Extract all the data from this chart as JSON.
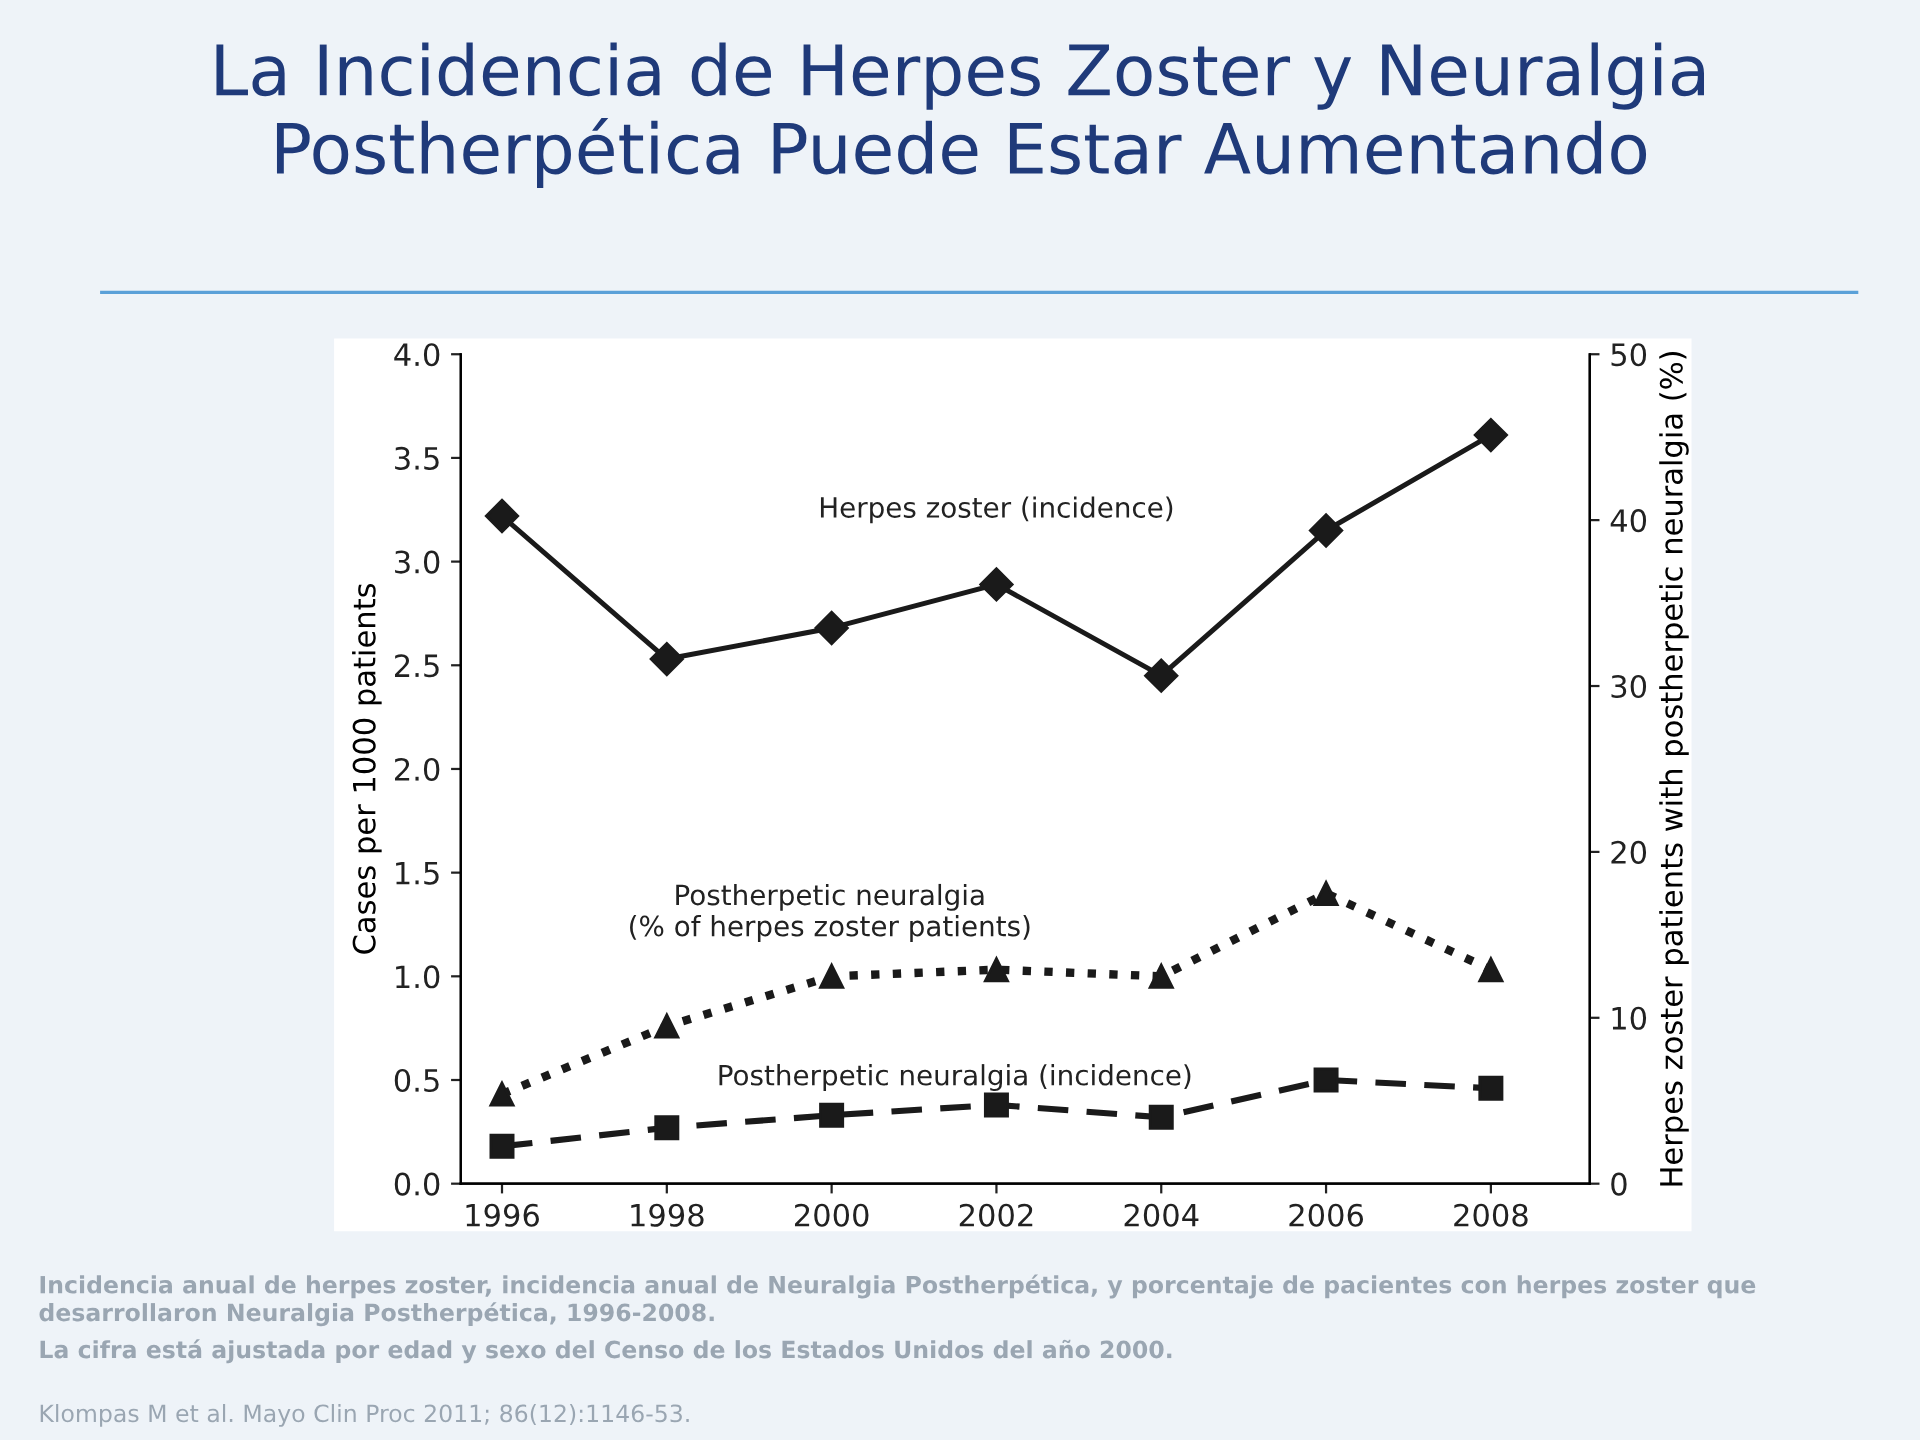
{
  "chart_data": {
    "type": "line",
    "title": "La Incidencia de Herpes Zoster y Neuralgia\nPostherpética Puede Estar Aumentando",
    "ylabel": "Cases per 1000 patients",
    "y2label": "Herpes zoster patients with postherpetic neuralgia (%)",
    "x": [
      1996,
      1998,
      2000,
      2002,
      2004,
      2006,
      2008
    ],
    "xlim": [
      1995.5,
      2009.2
    ],
    "xticks": [
      1996,
      1998,
      2000,
      2002,
      2004,
      2006,
      2008
    ],
    "ylim": [
      0,
      4
    ],
    "yticks": [
      {
        "value": 0,
        "label": "0.0"
      },
      {
        "value": 0.5,
        "label": "0.5"
      },
      {
        "value": 1,
        "label": "1.0"
      },
      {
        "value": 1.5,
        "label": "1.5"
      },
      {
        "value": 2,
        "label": "2.0"
      },
      {
        "value": 2.5,
        "label": "2.5"
      },
      {
        "value": 3,
        "label": "3.0"
      },
      {
        "value": 3.5,
        "label": "3.5"
      },
      {
        "value": 4,
        "label": "4.0"
      }
    ],
    "y2lim": [
      0,
      50
    ],
    "y2ticks": [
      0,
      10,
      20,
      30,
      40,
      50
    ],
    "grid": false,
    "legend": false,
    "series": [
      {
        "name": "Herpes zoster (incidence)",
        "color": "#1a1a1a",
        "marker": "diamond",
        "line_style": "solid",
        "values": [
          3.22,
          2.53,
          2.68,
          2.89,
          2.45,
          3.15,
          3.61
        ]
      },
      {
        "name": "Postherpetic neuralgia\n(% of herpes zoster patients)",
        "color": "#1a1a1a",
        "marker": "triangle",
        "line_style": "dotted",
        "axis": "y2",
        "values": [
          5.4,
          9.5,
          12.5,
          12.9,
          12.5,
          17.5,
          12.9
        ]
      },
      {
        "name": "Postherpetic neuralgia (incidence)",
        "color": "#1a1a1a",
        "marker": "square",
        "line_style": "dashed",
        "values": [
          0.18,
          0.27,
          0.33,
          0.38,
          0.32,
          0.5,
          0.46
        ]
      }
    ],
    "annotations": [
      "Incidencia anual de herpes zoster, incidencia anual de Neuralgia Postherpética, y porcentaje de pacientes con herpes zoster que desarrollaron Neuralgia Postherpética, 1996-2008.",
      "La cifra está ajustada por edad y sexo del Censo de los Estados Unidos del año 2000.",
      "Klompas M et al. Mayo Clin Proc 2011; 86(12):1146-53."
    ]
  }
}
